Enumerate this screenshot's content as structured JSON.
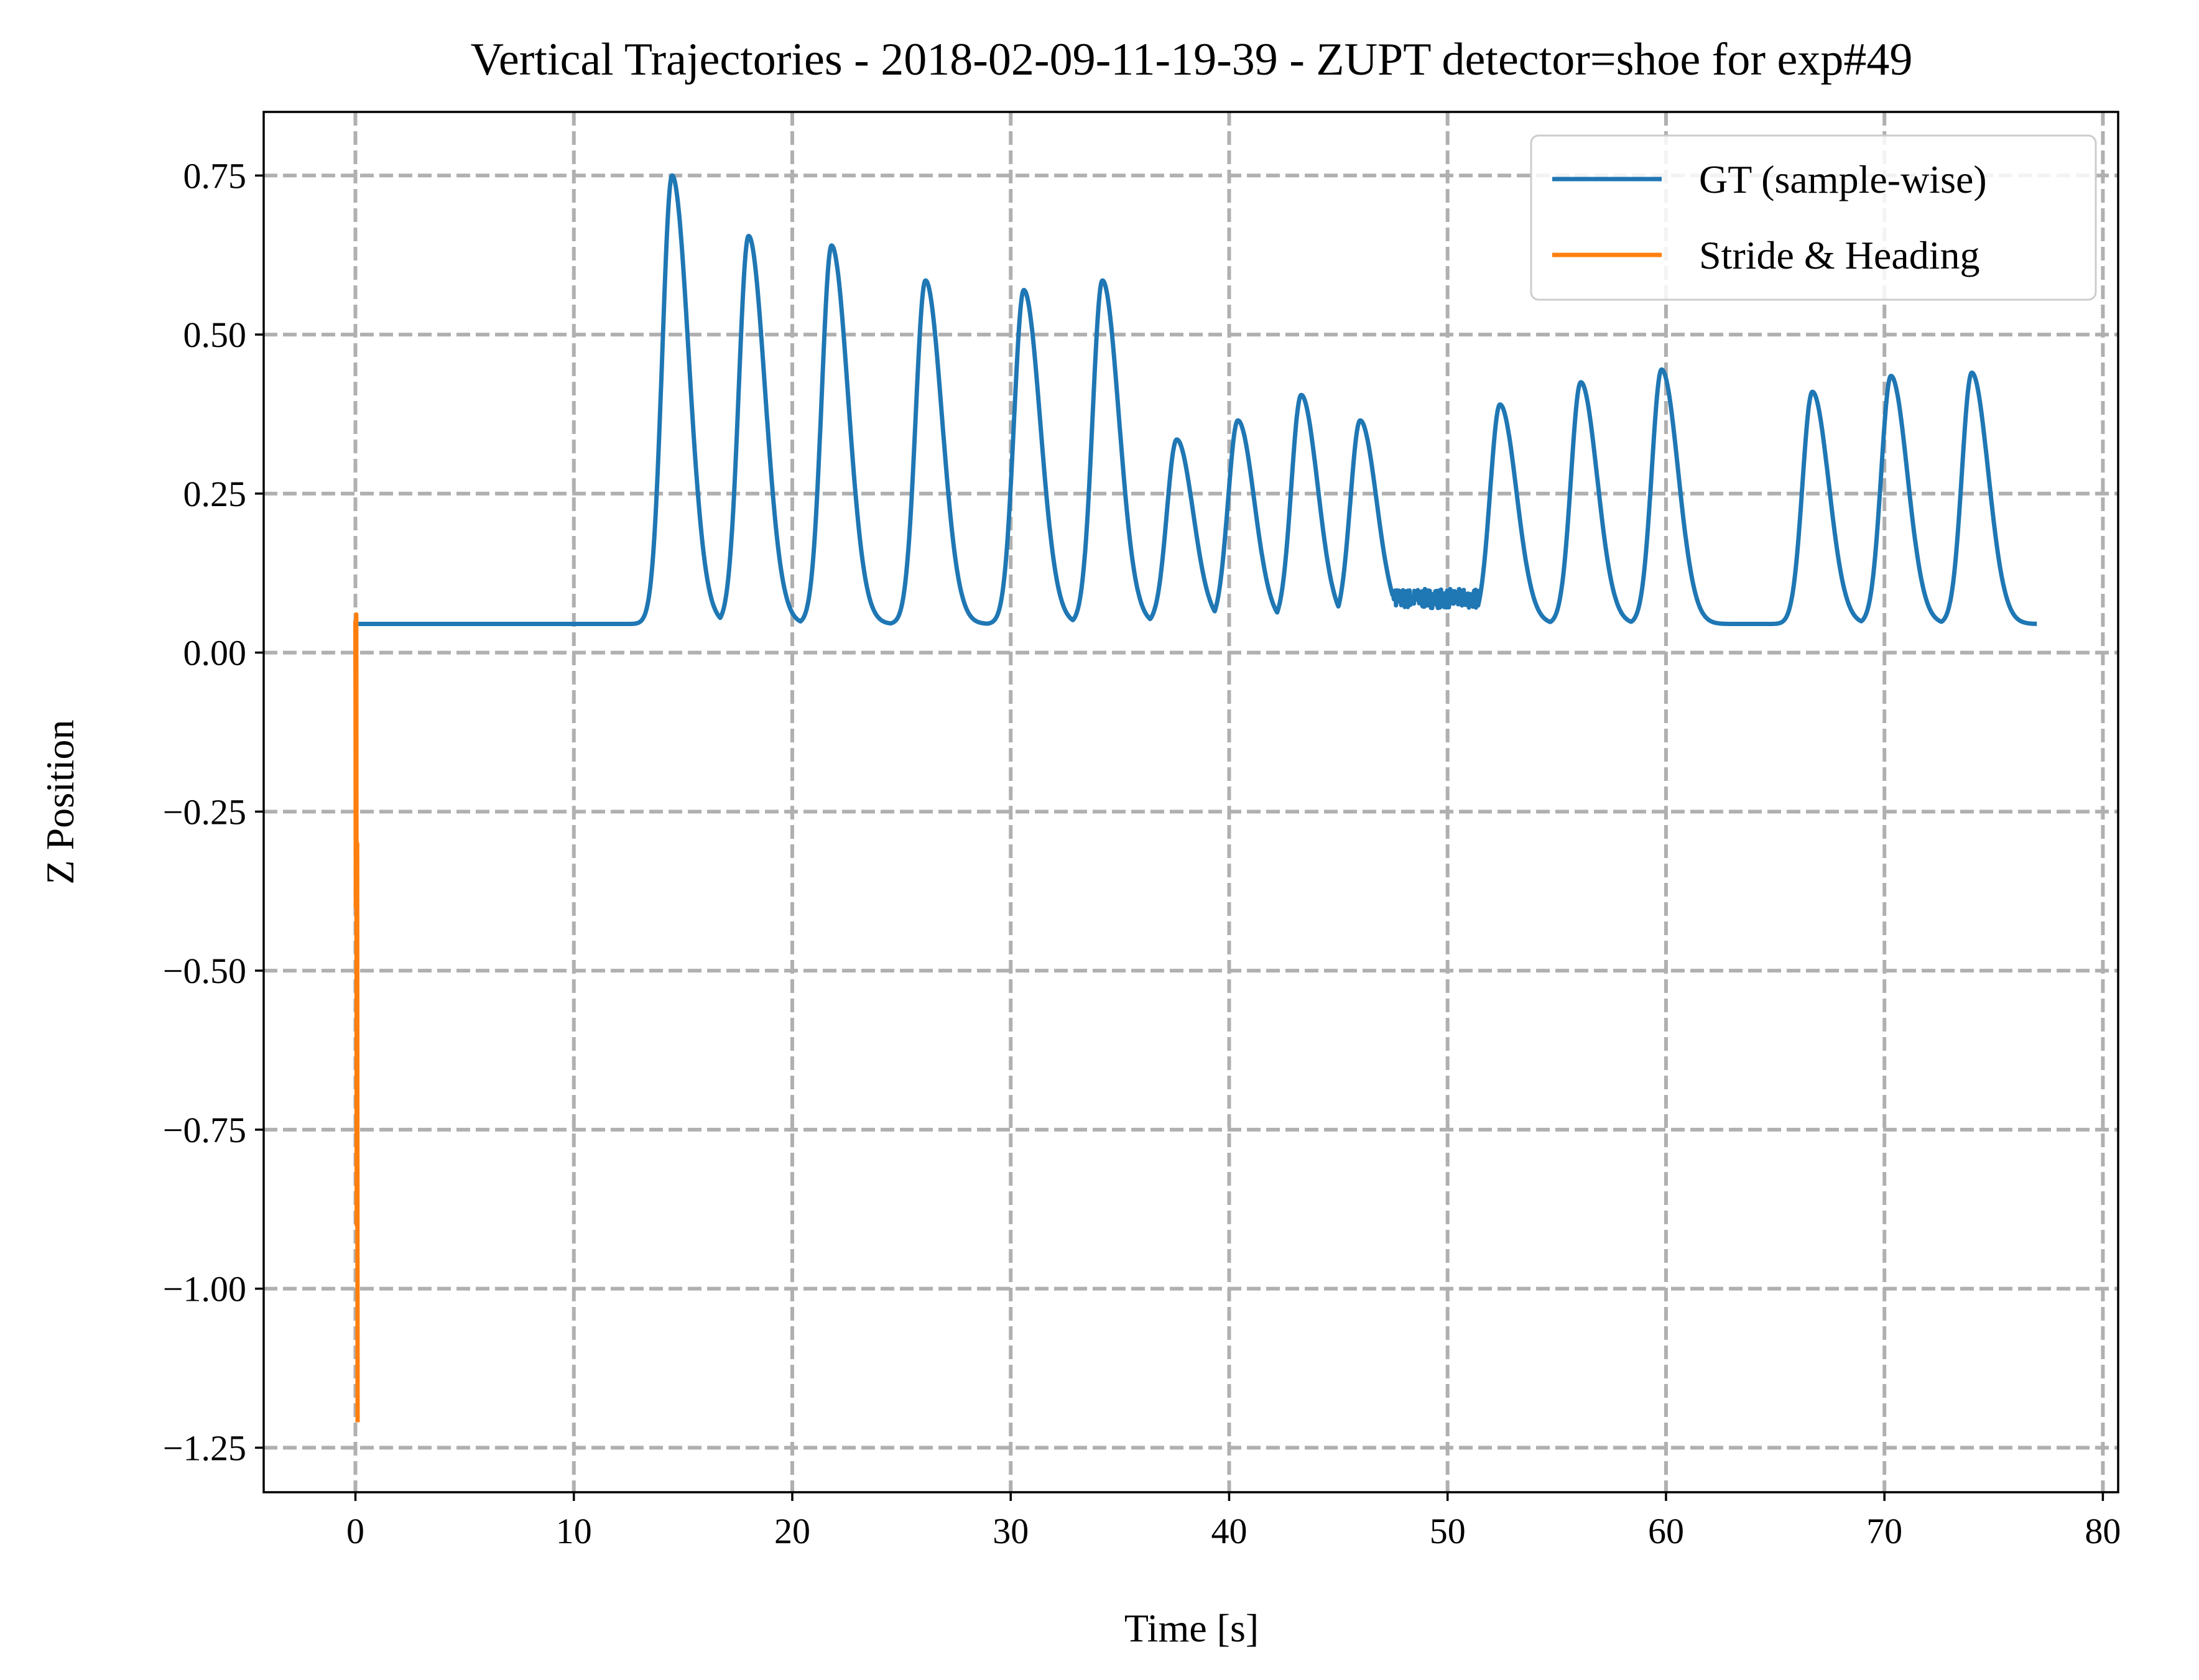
{
  "chart_data": {
    "type": "line",
    "title": "Vertical Trajectories - 2018-02-09-11-19-39 - ZUPT detector=shoe for exp#49",
    "xlabel": "Time [s]",
    "ylabel": "Z Position",
    "xlim": [
      -4.2,
      80.7
    ],
    "ylim": [
      -1.32,
      0.85
    ],
    "xticks": [
      0,
      10,
      20,
      30,
      40,
      50,
      60,
      70,
      80
    ],
    "xtick_labels": [
      "0",
      "10",
      "20",
      "30",
      "40",
      "50",
      "60",
      "70",
      "80"
    ],
    "yticks": [
      0.75,
      0.5,
      0.25,
      0.0,
      -0.25,
      -0.5,
      -0.75,
      -1.0,
      -1.25
    ],
    "ytick_labels": [
      "0.75",
      "0.50",
      "0.25",
      "0.00",
      "−0.25",
      "−0.50",
      "−0.75",
      "−1.00",
      "−1.25"
    ],
    "grid": true,
    "legend_position": "top-right",
    "series": [
      {
        "name": "GT (sample-wise)",
        "color": "#1f77b4",
        "baseline": 0.045,
        "x_start": 0.0,
        "x_end": 77.0,
        "peaks": [
          {
            "t": 14.5,
            "z": 0.75
          },
          {
            "t": 18.0,
            "z": 0.655
          },
          {
            "t": 21.8,
            "z": 0.64
          },
          {
            "t": 26.1,
            "z": 0.585
          },
          {
            "t": 30.6,
            "z": 0.57
          },
          {
            "t": 34.2,
            "z": 0.585
          },
          {
            "t": 37.6,
            "z": 0.335
          },
          {
            "t": 40.4,
            "z": 0.365
          },
          {
            "t": 43.3,
            "z": 0.405
          },
          {
            "t": 46.0,
            "z": 0.365
          },
          {
            "t": 52.4,
            "z": 0.39
          },
          {
            "t": 56.1,
            "z": 0.425
          },
          {
            "t": 59.8,
            "z": 0.445
          },
          {
            "t": 66.7,
            "z": 0.41
          },
          {
            "t": 70.3,
            "z": 0.435
          },
          {
            "t": 74.0,
            "z": 0.44
          }
        ],
        "noisy_segment": {
          "t_start": 47.2,
          "t_end": 51.6,
          "z_low": 0.07,
          "z_high": 0.1
        }
      },
      {
        "name": "Stride & Heading",
        "color": "#ff7f0e",
        "x": [
          0.0,
          0.02,
          0.04,
          0.06,
          0.08,
          0.1
        ],
        "y": [
          0.05,
          -0.4,
          0.06,
          -0.9,
          -0.3,
          -1.21
        ]
      }
    ]
  }
}
